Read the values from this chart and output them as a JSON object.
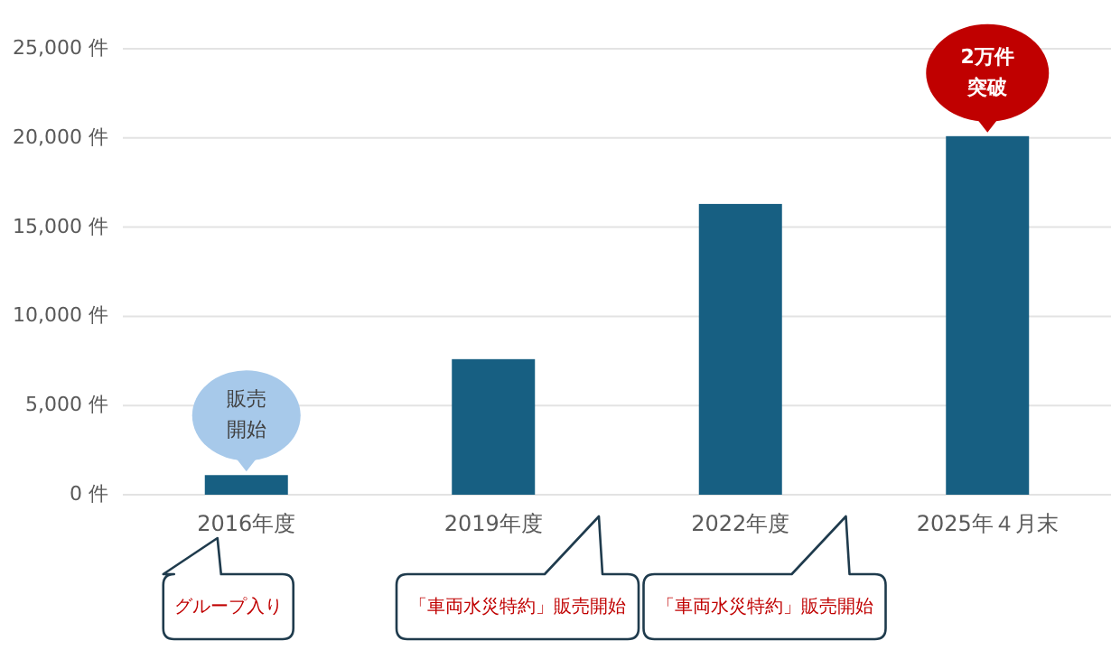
{
  "chart_data": {
    "type": "bar",
    "categories": [
      "2016年度",
      "2019年度",
      "2022年度",
      "2025年４月末"
    ],
    "values": [
      1100,
      7600,
      16300,
      20100
    ],
    "color": "#175f82",
    "ylim": [
      0,
      25000
    ],
    "yticks": [
      {
        "value": 0,
        "label": "0 件"
      },
      {
        "value": 5000,
        "label": "5,000 件"
      },
      {
        "value": 10000,
        "label": "10,000 件"
      },
      {
        "value": 15000,
        "label": "15,000 件"
      },
      {
        "value": 20000,
        "label": "20,000 件"
      },
      {
        "value": 25000,
        "label": "25,000 件"
      }
    ],
    "grid": "y",
    "annotations": [
      {
        "text": "販売開始",
        "x": "2016年度",
        "y": 1100
      },
      {
        "text": "2万件突破",
        "x": "2025年４月末",
        "y": 20100
      },
      "グループ入り",
      "「車両水災特約」販売開始",
      "「車両水災特約」販売開始"
    ]
  }
}
